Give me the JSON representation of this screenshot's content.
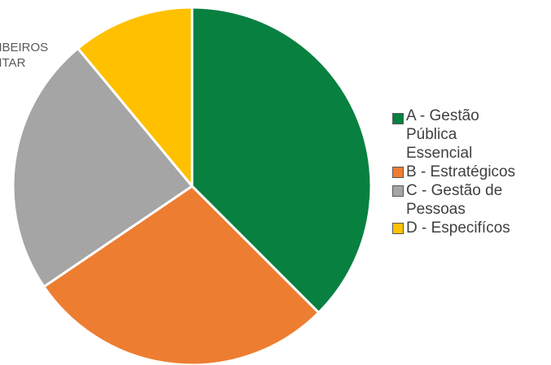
{
  "chart_data": {
    "type": "pie",
    "title": "MBEIROS\nLITAR",
    "slices": [
      {
        "name": "A - Gestão Pública Essencial",
        "legend_text": "A - Gestão\nPública\nEssencial",
        "value": 37.5,
        "color": "#088040"
      },
      {
        "name": "B - Estratégicos",
        "legend_text": "B - Estratégicos",
        "value": 28.0,
        "color": "#ED7D31"
      },
      {
        "name": "C - Gestão de Pessoas",
        "legend_text": "C - Gestão de\nPessoas",
        "value": 23.5,
        "color": "#A5A5A5"
      },
      {
        "name": "D - Especifícos",
        "legend_text": "D - Especifícos",
        "value": 11.0,
        "color": "#FFC000"
      }
    ],
    "start_angle_deg": 0,
    "direction": "clockwise",
    "legend_position": "right"
  }
}
